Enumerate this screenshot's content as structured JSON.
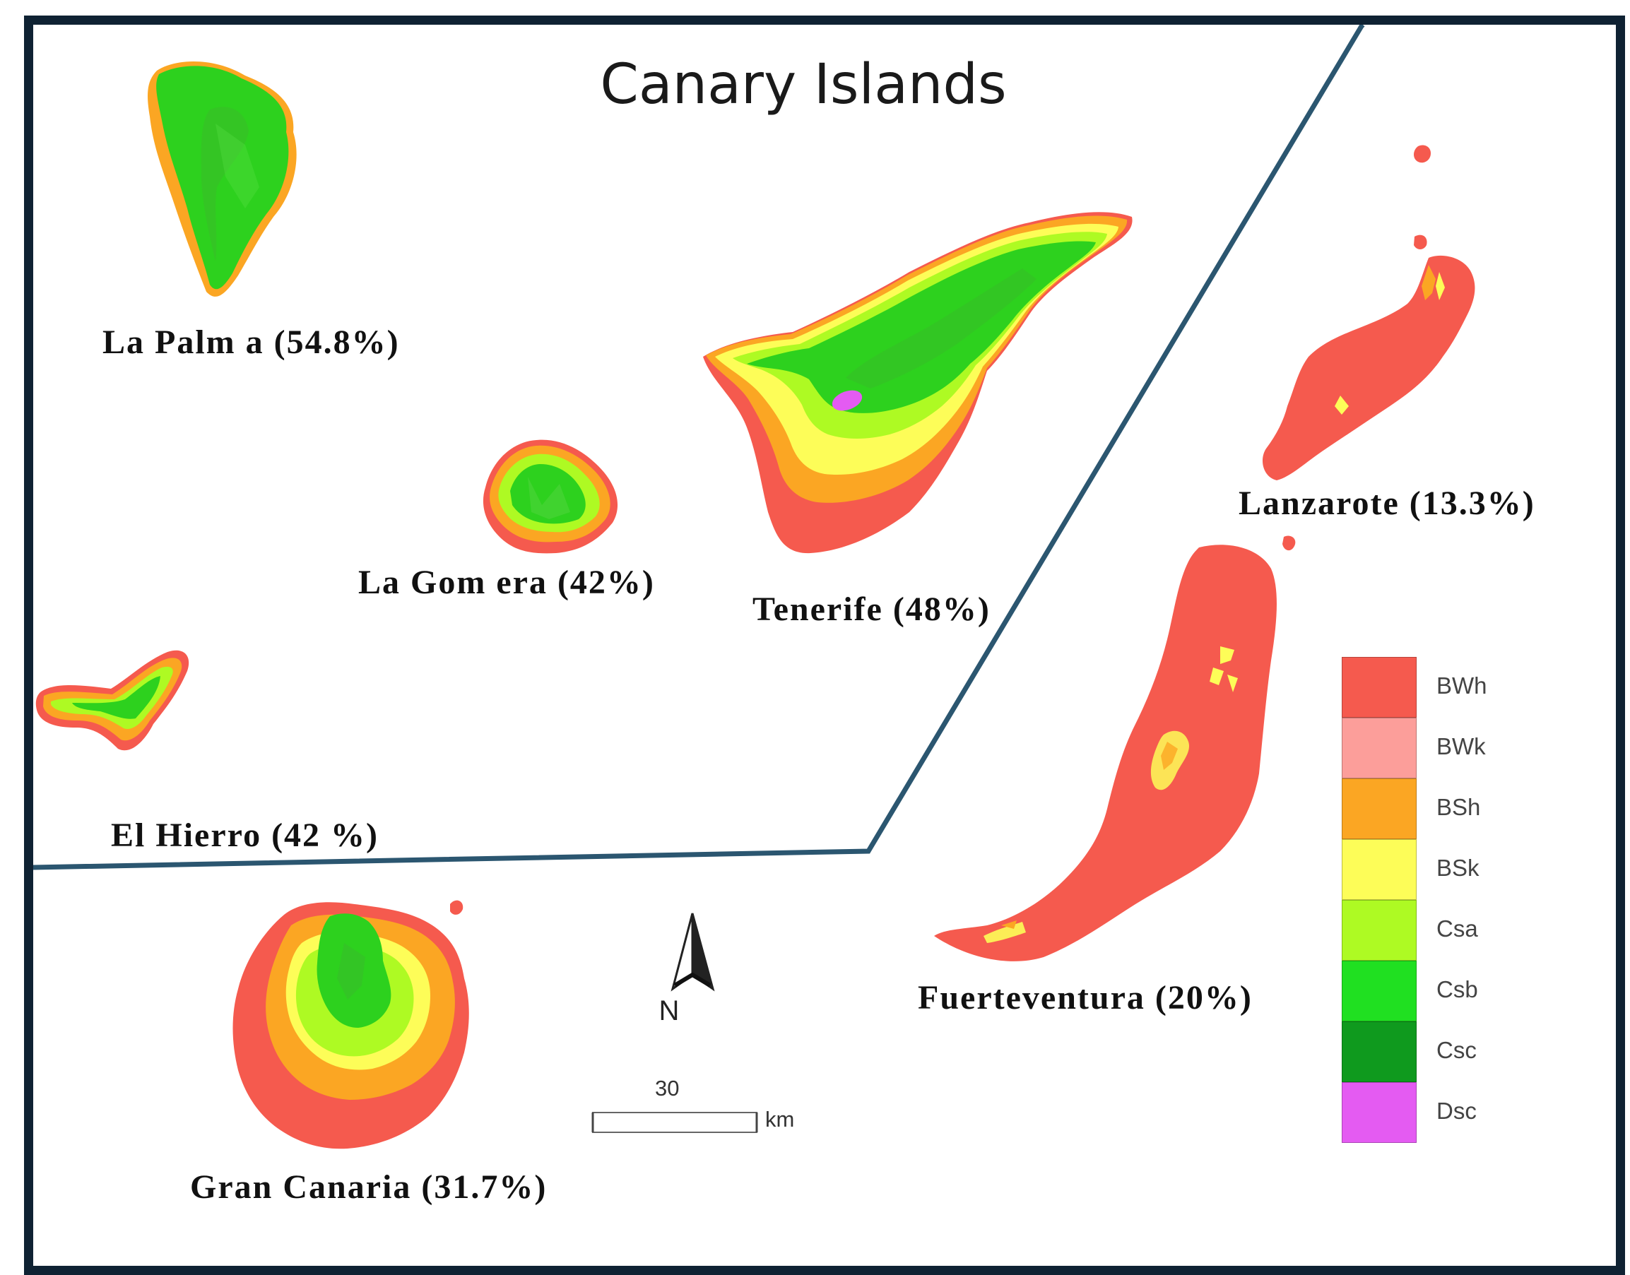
{
  "map": {
    "title": "Canary Islands",
    "islands": {
      "la_palma": {
        "label": "La Palm a (54.8%)"
      },
      "la_gomera": {
        "label": "La Gom era (42%)"
      },
      "tenerife": {
        "label": "Tenerife (48%)"
      },
      "el_hierro": {
        "label": "El Hierro (42 %)"
      },
      "lanzarote": {
        "label": "Lanzarote (13.3%)"
      },
      "fuerteventura": {
        "label": "Fuerteventura (20%)"
      },
      "gran_canaria": {
        "label": "Gran Canaria (31.7%)"
      }
    },
    "legend": [
      {
        "code": "BWh",
        "color": "#f55a4e"
      },
      {
        "code": "BWk",
        "color": "#fc9e9a"
      },
      {
        "code": "BSh",
        "color": "#fba623"
      },
      {
        "code": "BSk",
        "color": "#fdfd58"
      },
      {
        "code": "Csa",
        "color": "#aefa23"
      },
      {
        "code": "Csb",
        "color": "#20e021"
      },
      {
        "code": "Csc",
        "color": "#0f9a1e"
      },
      {
        "code": "Dsc",
        "color": "#e45bf2"
      }
    ],
    "north_arrow": {
      "label": "N"
    },
    "scale_bar": {
      "value": "30",
      "unit": "km"
    },
    "frame_color": "#0f2233",
    "divider_color": "#2b5670"
  }
}
